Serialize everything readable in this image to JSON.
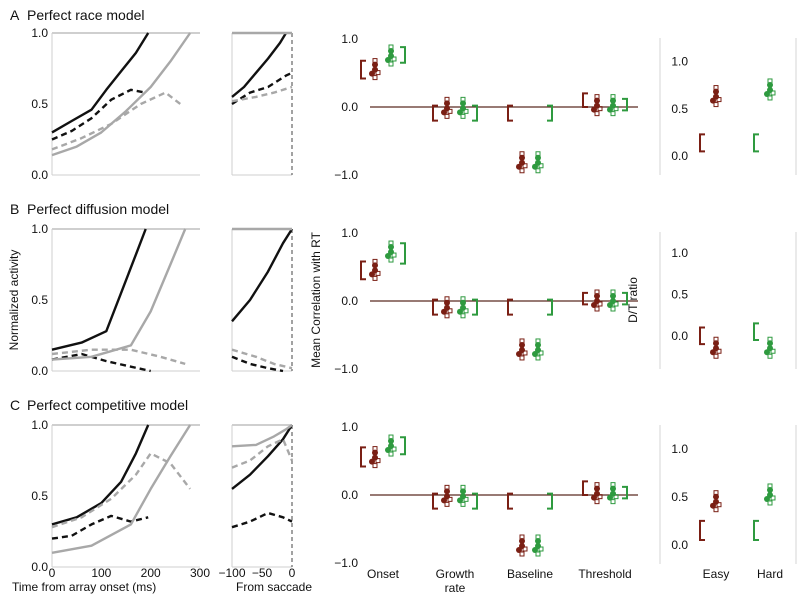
{
  "figure": {
    "rows": [
      {
        "letter": "A",
        "title": "Perfect race model"
      },
      {
        "letter": "B",
        "title": "Perfect diffusion model"
      },
      {
        "letter": "C",
        "title": "Perfect competitive model"
      }
    ],
    "ylabel_activity": "Normalized activity",
    "ylabel_corr": "Mean Correlation with RT",
    "ylabel_ratio": "D/T ratio",
    "xlabel_array": "Time from array onset (ms)",
    "xlabel_saccade": "From saccade",
    "x_ticks_array": [
      "0",
      "100",
      "200",
      "300"
    ],
    "x_ticks_saccade": [
      "−100",
      "−50",
      "0"
    ],
    "y_ticks_activity": [
      "0.0",
      "0.5",
      "1.0"
    ],
    "y_ticks_corr": [
      "−1.0",
      "0.0",
      "1.0"
    ],
    "y_ticks_ratio": [
      "0.0",
      "0.5",
      "1.0"
    ],
    "corr_categories": [
      "Onset",
      "Growth",
      "Baseline",
      "Threshold"
    ],
    "corr_category_line2": [
      "",
      "rate",
      "",
      ""
    ],
    "ratio_categories": [
      "Easy",
      "Hard"
    ],
    "colors": {
      "easy": "#7a1f14",
      "hard": "#2e9a3f",
      "black": "#111111",
      "gray": "#a8a8a8",
      "zero_line": "#5a2a22"
    }
  },
  "chart_data": [
    {
      "type": "line",
      "panel": "A-array",
      "xlim": [
        0,
        300
      ],
      "ylim": [
        0,
        1
      ],
      "series": [
        {
          "style": "solid-black",
          "x": [
            0,
            40,
            80,
            110,
            140,
            170,
            195
          ],
          "y": [
            0.3,
            0.38,
            0.46,
            0.6,
            0.73,
            0.86,
            1.0
          ]
        },
        {
          "style": "dashed-black",
          "x": [
            0,
            40,
            80,
            120,
            160,
            190
          ],
          "y": [
            0.25,
            0.31,
            0.4,
            0.53,
            0.6,
            0.58
          ]
        },
        {
          "style": "solid-gray",
          "x": [
            0,
            50,
            100,
            150,
            200,
            240,
            280
          ],
          "y": [
            0.14,
            0.2,
            0.3,
            0.45,
            0.62,
            0.8,
            1.0
          ]
        },
        {
          "style": "dashed-gray",
          "x": [
            0,
            60,
            120,
            180,
            230,
            260
          ],
          "y": [
            0.18,
            0.26,
            0.36,
            0.5,
            0.58,
            0.5
          ]
        }
      ]
    },
    {
      "type": "line",
      "panel": "A-saccade",
      "xlim": [
        -100,
        0
      ],
      "ylim": [
        0,
        1
      ],
      "series": [
        {
          "style": "solid-black",
          "x": [
            -100,
            -80,
            -60,
            -40,
            -20,
            -10
          ],
          "y": [
            0.55,
            0.62,
            0.72,
            0.82,
            0.93,
            1.0
          ]
        },
        {
          "style": "dashed-black",
          "x": [
            -100,
            -70,
            -40,
            -10,
            0
          ],
          "y": [
            0.5,
            0.58,
            0.62,
            0.7,
            0.72
          ]
        },
        {
          "style": "solid-gray",
          "x": [
            -100,
            -50,
            0
          ],
          "y": [
            1.0,
            1.0,
            1.0
          ]
        },
        {
          "style": "dashed-gray",
          "x": [
            -100,
            -60,
            -30,
            0
          ],
          "y": [
            0.52,
            0.55,
            0.58,
            0.62
          ]
        }
      ]
    },
    {
      "type": "scatter",
      "panel": "A-correlation",
      "ylim": [
        -1,
        1
      ],
      "categories": [
        "Onset",
        "Growth rate",
        "Baseline",
        "Threshold"
      ],
      "series": [
        {
          "name": "Easy",
          "values": [
            0.55,
            -0.02,
            -0.82,
            0.02
          ],
          "ci": [
            [
              0.42,
              0.68
            ],
            [
              -0.2,
              0.02
            ],
            [
              -0.2,
              0.02
            ],
            [
              0.0,
              0.2
            ]
          ]
        },
        {
          "name": "Hard",
          "values": [
            0.75,
            -0.02,
            -0.82,
            0.02
          ],
          "ci": [
            [
              0.65,
              0.88
            ],
            [
              -0.2,
              0.02
            ],
            [
              -0.2,
              0.02
            ],
            [
              -0.05,
              0.12
            ]
          ]
        }
      ]
    },
    {
      "type": "scatter",
      "panel": "A-ratio",
      "ylim": [
        -0.2,
        1.25
      ],
      "categories": [
        "Easy",
        "Hard"
      ],
      "values": [
        0.63,
        0.7
      ],
      "ci": [
        [
          0.05,
          0.23
        ],
        [
          0.05,
          0.23
        ]
      ]
    },
    {
      "type": "line",
      "panel": "B-array",
      "xlim": [
        0,
        300
      ],
      "ylim": [
        0,
        1
      ],
      "series": [
        {
          "style": "solid-black",
          "x": [
            0,
            60,
            110,
            140,
            170,
            190
          ],
          "y": [
            0.15,
            0.2,
            0.28,
            0.55,
            0.82,
            1.0
          ]
        },
        {
          "style": "dashed-black",
          "x": [
            0,
            60,
            110,
            160,
            200
          ],
          "y": [
            0.08,
            0.12,
            0.07,
            0.03,
            0.0
          ]
        },
        {
          "style": "solid-gray",
          "x": [
            0,
            80,
            160,
            200,
            240,
            270
          ],
          "y": [
            0.08,
            0.1,
            0.18,
            0.42,
            0.75,
            1.0
          ]
        },
        {
          "style": "dashed-gray",
          "x": [
            0,
            80,
            160,
            220,
            270
          ],
          "y": [
            0.12,
            0.15,
            0.15,
            0.1,
            0.05
          ]
        }
      ]
    },
    {
      "type": "line",
      "panel": "B-saccade",
      "xlim": [
        -100,
        0
      ],
      "ylim": [
        0,
        1
      ],
      "series": [
        {
          "style": "solid-black",
          "x": [
            -100,
            -70,
            -40,
            -15,
            0
          ],
          "y": [
            0.35,
            0.5,
            0.7,
            0.9,
            1.0
          ]
        },
        {
          "style": "dashed-black",
          "x": [
            -100,
            -70,
            -40,
            -15
          ],
          "y": [
            0.1,
            0.05,
            0.02,
            0.0
          ]
        },
        {
          "style": "solid-gray",
          "x": [
            -100,
            -50,
            0
          ],
          "y": [
            1.0,
            1.0,
            1.0
          ]
        },
        {
          "style": "dashed-gray",
          "x": [
            -100,
            -60,
            -30,
            0
          ],
          "y": [
            0.15,
            0.1,
            0.05,
            0.02
          ]
        }
      ]
    },
    {
      "type": "scatter",
      "panel": "B-correlation",
      "ylim": [
        -1,
        1
      ],
      "categories": [
        "Onset",
        "Growth rate",
        "Baseline",
        "Threshold"
      ],
      "series": [
        {
          "name": "Easy",
          "values": [
            0.45,
            -0.1,
            -0.72,
            0.0
          ],
          "ci": [
            [
              0.32,
              0.58
            ],
            [
              -0.2,
              0.02
            ],
            [
              -0.2,
              0.02
            ],
            [
              -0.05,
              0.12
            ]
          ]
        },
        {
          "name": "Hard",
          "values": [
            0.72,
            -0.1,
            -0.72,
            0.0
          ],
          "ci": [
            [
              0.55,
              0.85
            ],
            [
              -0.2,
              0.02
            ],
            [
              -0.2,
              0.02
            ],
            [
              -0.05,
              0.12
            ]
          ]
        }
      ]
    },
    {
      "type": "scatter",
      "panel": "B-ratio",
      "ylim": [
        -0.4,
        1.25
      ],
      "categories": [
        "Easy",
        "Hard"
      ],
      "values": [
        -0.15,
        -0.15
      ],
      "ci": [
        [
          -0.1,
          0.1
        ],
        [
          -0.05,
          0.15
        ]
      ]
    },
    {
      "type": "line",
      "panel": "C-array",
      "xlim": [
        0,
        300
      ],
      "ylim": [
        0,
        1
      ],
      "series": [
        {
          "style": "solid-black",
          "x": [
            0,
            50,
            100,
            140,
            170,
            195
          ],
          "y": [
            0.3,
            0.35,
            0.45,
            0.6,
            0.8,
            1.0
          ]
        },
        {
          "style": "dashed-black",
          "x": [
            0,
            40,
            80,
            120,
            160,
            195
          ],
          "y": [
            0.2,
            0.22,
            0.3,
            0.36,
            0.32,
            0.35
          ]
        },
        {
          "style": "solid-gray",
          "x": [
            0,
            80,
            160,
            200,
            240,
            280
          ],
          "y": [
            0.1,
            0.15,
            0.3,
            0.55,
            0.78,
            1.0
          ]
        },
        {
          "style": "dashed-gray",
          "x": [
            0,
            60,
            120,
            170,
            200,
            240,
            280
          ],
          "y": [
            0.28,
            0.35,
            0.48,
            0.65,
            0.8,
            0.73,
            0.55
          ]
        }
      ]
    },
    {
      "type": "line",
      "panel": "C-saccade",
      "xlim": [
        -100,
        0
      ],
      "ylim": [
        0,
        1
      ],
      "series": [
        {
          "style": "solid-black",
          "x": [
            -100,
            -70,
            -40,
            -15,
            0
          ],
          "y": [
            0.55,
            0.65,
            0.78,
            0.9,
            1.0
          ]
        },
        {
          "style": "dashed-black",
          "x": [
            -100,
            -70,
            -40,
            -15,
            0
          ],
          "y": [
            0.28,
            0.32,
            0.38,
            0.35,
            0.32
          ]
        },
        {
          "style": "solid-gray",
          "x": [
            -100,
            -60,
            -30,
            -10,
            0
          ],
          "y": [
            0.85,
            0.86,
            0.92,
            0.97,
            1.0
          ]
        },
        {
          "style": "dashed-gray",
          "x": [
            -100,
            -70,
            -40,
            -15,
            0
          ],
          "y": [
            0.7,
            0.75,
            0.85,
            0.9,
            0.75
          ]
        }
      ]
    },
    {
      "type": "scatter",
      "panel": "C-correlation",
      "ylim": [
        -1,
        1
      ],
      "categories": [
        "Onset",
        "Growth rate",
        "Baseline",
        "Threshold"
      ],
      "series": [
        {
          "name": "Easy",
          "values": [
            0.55,
            -0.02,
            -0.75,
            0.02
          ],
          "ci": [
            [
              0.42,
              0.7
            ],
            [
              -0.2,
              0.02
            ],
            [
              -0.2,
              0.02
            ],
            [
              0.0,
              0.2
            ]
          ]
        },
        {
          "name": "Hard",
          "values": [
            0.72,
            -0.02,
            -0.75,
            0.02
          ],
          "ci": [
            [
              0.6,
              0.85
            ],
            [
              -0.2,
              0.02
            ],
            [
              -0.2,
              0.02
            ],
            [
              -0.05,
              0.12
            ]
          ]
        }
      ]
    },
    {
      "type": "scatter",
      "panel": "C-ratio",
      "ylim": [
        -0.2,
        1.25
      ],
      "categories": [
        "Easy",
        "Hard"
      ],
      "values": [
        0.45,
        0.52
      ],
      "ci": [
        [
          0.05,
          0.25
        ],
        [
          0.05,
          0.25
        ]
      ]
    }
  ]
}
